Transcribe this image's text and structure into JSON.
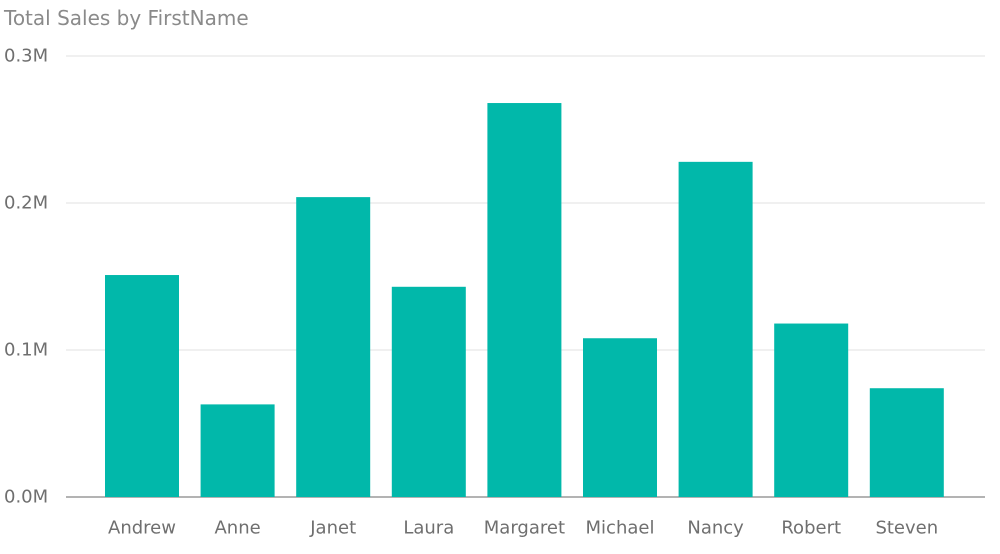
{
  "chart_data": {
    "type": "bar",
    "title": "Total Sales by FirstName",
    "xlabel": "",
    "ylabel": "",
    "categories": [
      "Andrew",
      "Anne",
      "Janet",
      "Laura",
      "Margaret",
      "Michael",
      "Nancy",
      "Robert",
      "Steven"
    ],
    "values": [
      151000,
      63000,
      204000,
      143000,
      268000,
      108000,
      228000,
      118000,
      74000
    ],
    "ylim": [
      0,
      300000
    ],
    "yticks": [
      {
        "value": 0,
        "label": "0.0M"
      },
      {
        "value": 100000,
        "label": "0.1M"
      },
      {
        "value": 200000,
        "label": "0.2M"
      },
      {
        "value": 300000,
        "label": "0.3M"
      }
    ],
    "grid": true,
    "legend": "none",
    "colors": {
      "bar": "#01B8AA",
      "gridline": "#E8E8E8",
      "baseline": "#9A9A9A",
      "title": "#8A8A8A",
      "tick_text": "#6F6F6F"
    }
  }
}
